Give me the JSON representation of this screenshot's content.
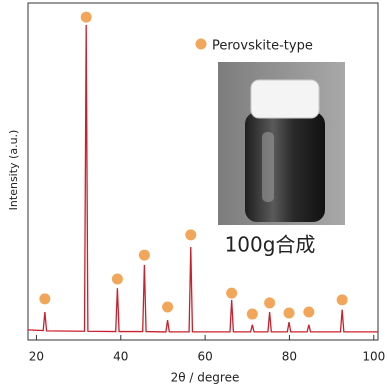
{
  "chart_data": {
    "type": "line",
    "xlabel": "2θ / degree",
    "ylabel": "Intensity (a.u.)",
    "xlim": [
      18,
      101
    ],
    "ylim": [
      0,
      100
    ],
    "xticks": [
      20,
      40,
      60,
      80,
      100
    ],
    "series": [
      {
        "color": "#c8202c",
        "x": [
          18,
          21.6,
          22.0,
          22.4,
          31.4,
          31.8,
          32.2,
          38.8,
          39.2,
          39.6,
          45.2,
          45.6,
          46.0,
          50.7,
          51.1,
          51.5,
          56.2,
          56.6,
          57.0,
          65.9,
          66.3,
          66.7,
          70.8,
          71.2,
          71.6,
          74.9,
          75.3,
          75.7,
          79.5,
          79.9,
          80.3,
          84.2,
          84.6,
          85.0,
          92.1,
          92.5,
          92.9,
          101
        ],
        "values": [
          3.0,
          2.8,
          8.3,
          2.7,
          2.6,
          93.5,
          2.6,
          2.5,
          15.4,
          2.5,
          2.5,
          22.3,
          2.5,
          2.4,
          5.9,
          2.4,
          2.4,
          27.6,
          2.4,
          2.4,
          11.9,
          2.4,
          2.4,
          4.5,
          2.4,
          2.4,
          8.3,
          2.4,
          2.4,
          5.3,
          2.4,
          2.4,
          4.5,
          2.4,
          2.4,
          9.0,
          2.4,
          2.4
        ]
      }
    ],
    "markers": {
      "name": "Perovskite-type",
      "color": "#f2a65a",
      "x": [
        22.0,
        31.8,
        39.2,
        45.6,
        51.1,
        56.6,
        66.3,
        71.2,
        75.3,
        79.9,
        84.6,
        92.5
      ],
      "y": [
        12.2,
        95.8,
        18.1,
        25.2,
        9.8,
        31.2,
        13.9,
        7.7,
        11.0,
        8.0,
        8.3,
        11.9
      ]
    },
    "annotation": "100g合成"
  }
}
